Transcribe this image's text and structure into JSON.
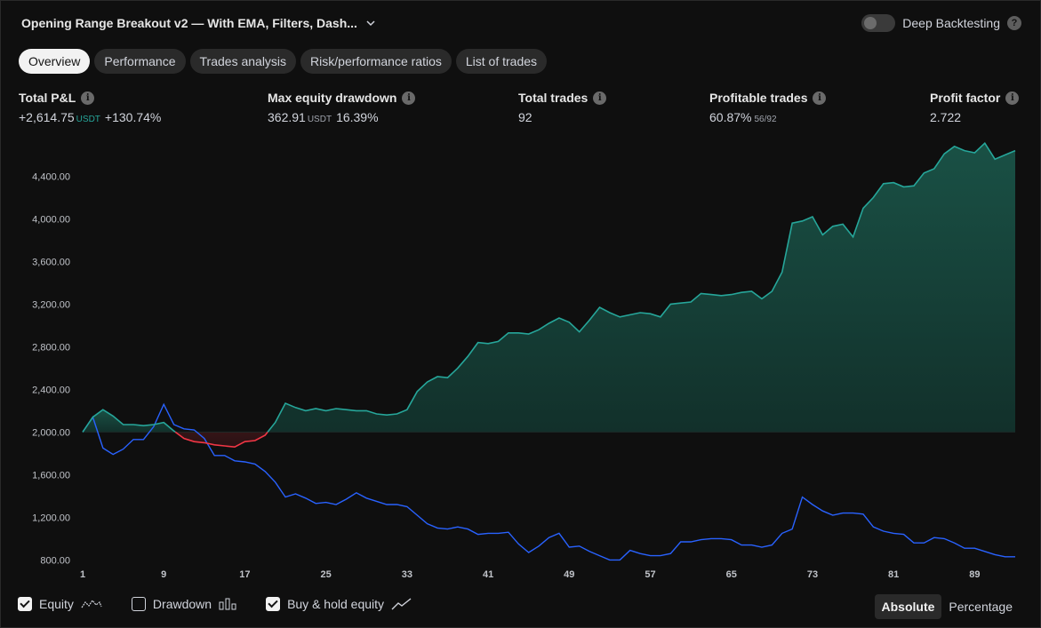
{
  "header": {
    "title": "Opening Range Breakout v2 — With EMA, Filters, Dash...",
    "deep_backtesting_label": "Deep Backtesting",
    "deep_backtesting_on": false
  },
  "tabs": [
    "Overview",
    "Performance",
    "Trades analysis",
    "Risk/performance ratios",
    "List of trades"
  ],
  "active_tab": "Overview",
  "metrics": {
    "total_pnl": {
      "label": "Total P&L",
      "value": "+2,614.75",
      "unit": "USDT",
      "sub": "+130.74%"
    },
    "max_drawdown": {
      "label": "Max equity drawdown",
      "value": "362.91",
      "unit": "USDT",
      "sub": "16.39%"
    },
    "total_trades": {
      "label": "Total trades",
      "value": "92"
    },
    "profitable_trades": {
      "label": "Profitable trades",
      "value": "60.87%",
      "sub": "56/92"
    },
    "profit_factor": {
      "label": "Profit factor",
      "value": "2.722"
    }
  },
  "legend": {
    "equity_label": "Equity",
    "equity_checked": true,
    "drawdown_label": "Drawdown",
    "drawdown_checked": false,
    "buyhold_label": "Buy & hold equity",
    "buyhold_checked": true
  },
  "mode": {
    "absolute": "Absolute",
    "percentage": "Percentage",
    "active": "Absolute"
  },
  "colors": {
    "equity_up": "#26a69a",
    "equity_down": "#f23645",
    "buy_hold": "#2962ff",
    "background": "#0f0f0f"
  },
  "chart_data": {
    "type": "area",
    "y_ticks": [
      "4,400.00",
      "4,000.00",
      "3,600.00",
      "3,200.00",
      "2,800.00",
      "2,400.00",
      "2,000.00",
      "1,600.00",
      "1,200.00",
      "800.00"
    ],
    "x_ticks": [
      "1",
      "9",
      "17",
      "25",
      "33",
      "41",
      "49",
      "57",
      "65",
      "73",
      "81",
      "89"
    ],
    "ylim": [
      720,
      4720
    ],
    "xlim": [
      1,
      93
    ],
    "baseline": 2000,
    "series": [
      {
        "name": "Equity",
        "x": [
          1,
          2,
          3,
          4,
          5,
          6,
          7,
          8,
          9,
          10,
          11,
          12,
          13,
          14,
          15,
          16,
          17,
          18,
          19,
          20,
          21,
          22,
          23,
          24,
          25,
          26,
          27,
          28,
          29,
          30,
          31,
          32,
          33,
          34,
          35,
          36,
          37,
          38,
          39,
          40,
          41,
          42,
          43,
          44,
          45,
          46,
          47,
          48,
          49,
          50,
          51,
          52,
          53,
          54,
          55,
          56,
          57,
          58,
          59,
          60,
          61,
          62,
          63,
          64,
          65,
          66,
          67,
          68,
          69,
          70,
          71,
          72,
          73,
          74,
          75,
          76,
          77,
          78,
          79,
          80,
          81,
          82,
          83,
          84,
          85,
          86,
          87,
          88,
          89,
          90,
          91,
          92,
          93
        ],
        "values": [
          2000,
          2140,
          2210,
          2150,
          2070,
          2070,
          2060,
          2070,
          2090,
          2010,
          1940,
          1910,
          1900,
          1880,
          1870,
          1860,
          1910,
          1920,
          1970,
          2090,
          2270,
          2230,
          2200,
          2220,
          2200,
          2220,
          2210,
          2200,
          2200,
          2170,
          2160,
          2170,
          2210,
          2380,
          2470,
          2520,
          2510,
          2600,
          2710,
          2840,
          2830,
          2850,
          2930,
          2930,
          2920,
          2960,
          3020,
          3070,
          3030,
          2940,
          3050,
          3170,
          3120,
          3080,
          3100,
          3120,
          3110,
          3080,
          3200,
          3210,
          3220,
          3300,
          3290,
          3280,
          3290,
          3310,
          3320,
          3250,
          3320,
          3500,
          3960,
          3980,
          4020,
          3850,
          3930,
          3950,
          3830,
          4100,
          4200,
          4330,
          4340,
          4300,
          4310,
          4430,
          4470,
          4610,
          4680,
          4640,
          4620,
          4710,
          4560,
          4600,
          4640
        ]
      },
      {
        "name": "Buy & hold equity",
        "x": [
          1,
          2,
          3,
          4,
          5,
          6,
          7,
          8,
          9,
          10,
          11,
          12,
          13,
          14,
          15,
          16,
          17,
          18,
          19,
          20,
          21,
          22,
          23,
          24,
          25,
          26,
          27,
          28,
          29,
          30,
          31,
          32,
          33,
          34,
          35,
          36,
          37,
          38,
          39,
          40,
          41,
          42,
          43,
          44,
          45,
          46,
          47,
          48,
          49,
          50,
          51,
          52,
          53,
          54,
          55,
          56,
          57,
          58,
          59,
          60,
          61,
          62,
          63,
          64,
          65,
          66,
          67,
          68,
          69,
          70,
          71,
          72,
          73,
          74,
          75,
          76,
          77,
          78,
          79,
          80,
          81,
          82,
          83,
          84,
          85,
          86,
          87,
          88,
          89,
          90,
          91,
          92,
          93
        ],
        "values": [
          2000,
          2140,
          1850,
          1790,
          1840,
          1930,
          1930,
          2050,
          2260,
          2070,
          2030,
          2020,
          1940,
          1780,
          1780,
          1730,
          1720,
          1700,
          1630,
          1530,
          1390,
          1420,
          1380,
          1330,
          1340,
          1320,
          1370,
          1430,
          1380,
          1350,
          1320,
          1320,
          1300,
          1220,
          1140,
          1100,
          1090,
          1110,
          1090,
          1040,
          1050,
          1050,
          1060,
          950,
          870,
          930,
          1010,
          1050,
          920,
          930,
          880,
          840,
          800,
          800,
          890,
          860,
          840,
          840,
          860,
          970,
          970,
          990,
          1000,
          1000,
          990,
          940,
          940,
          920,
          940,
          1050,
          1090,
          1390,
          1320,
          1260,
          1220,
          1240,
          1240,
          1230,
          1110,
          1070,
          1050,
          1040,
          960,
          960,
          1010,
          1000,
          960,
          910,
          910,
          880,
          850,
          830,
          830
        ]
      }
    ]
  }
}
